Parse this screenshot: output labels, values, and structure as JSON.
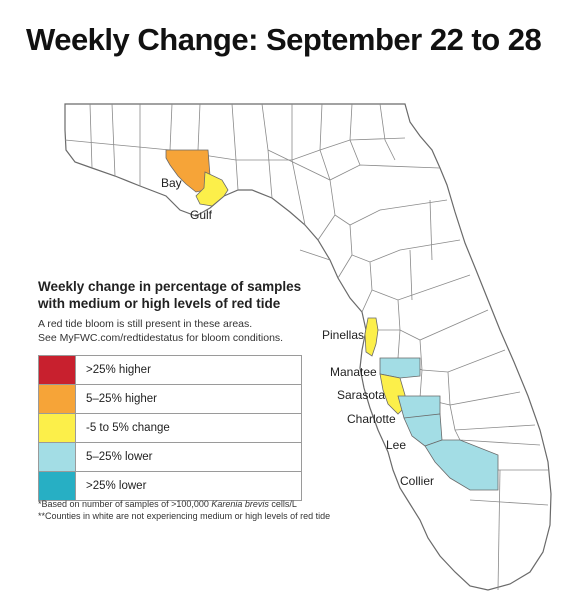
{
  "title": "Weekly Change: September 22 to 28",
  "legend": {
    "heading_line1": "Weekly change in percentage of samples",
    "heading_line2": "with medium or high levels of red tide",
    "note_line1": "A red tide bloom is still present in these areas.",
    "note_line2": "See MyFWC.com/redtidestatus for bloom conditions.",
    "items": [
      {
        "label": ">25% higher",
        "color": "#c8202e"
      },
      {
        "label": "5–25% higher",
        "color": "#f6a438"
      },
      {
        "label": "-5 to 5% change",
        "color": "#fcef4a"
      },
      {
        "label": "5–25% lower",
        "color": "#a3dde5"
      },
      {
        "label": ">25% lower",
        "color": "#27afc4"
      }
    ]
  },
  "footnotes": {
    "line1_prefix": "*Based on number of samples of >100,000 ",
    "line1_species": "Karenia brevis",
    "line1_suffix": " cells/L",
    "line2": "**Counties in white are not experiencing medium or high levels of red tide"
  },
  "counties": [
    {
      "name": "Bay",
      "category": "5–25% higher"
    },
    {
      "name": "Gulf",
      "category": "-5 to 5% change"
    },
    {
      "name": "Pinellas",
      "category": "-5 to 5% change"
    },
    {
      "name": "Manatee",
      "category": "5–25% lower"
    },
    {
      "name": "Sarasota",
      "category": "-5 to 5% change"
    },
    {
      "name": "Charlotte",
      "category": "5–25% lower"
    },
    {
      "name": "Lee",
      "category": "5–25% lower"
    },
    {
      "name": "Collier",
      "category": "5–25% lower"
    }
  ],
  "colors": {
    "state_fill": "#ffffff",
    "border": "#6a6a6a"
  }
}
